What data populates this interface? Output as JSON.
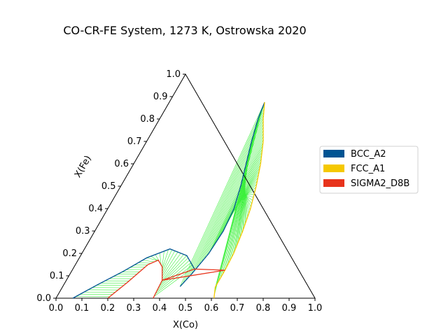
{
  "chart_data": {
    "type": "ternary-phase-diagram",
    "title": "CO-CR-FE System, 1273 K, Ostrowska 2020",
    "xlabel": "X(Co)",
    "ylabel": "X(Fe)",
    "x_ticks": [
      "0.0",
      "0.1",
      "0.2",
      "0.3",
      "0.4",
      "0.5",
      "0.6",
      "0.7",
      "0.8",
      "0.9",
      "1.0"
    ],
    "y_ticks": [
      "0.0",
      "0.1",
      "0.2",
      "0.3",
      "0.4",
      "0.5",
      "0.6",
      "0.7",
      "0.8",
      "0.9",
      "1.0"
    ],
    "xlim": [
      0,
      1
    ],
    "ylim": [
      0,
      1
    ],
    "legend_position": "right",
    "legend": [
      {
        "name": "BCC_A2",
        "color": "#005493"
      },
      {
        "name": "FCC_A1",
        "color": "#f5c800"
      },
      {
        "name": "SIGMA2_D8B",
        "color": "#e8341c"
      }
    ],
    "tie_line_color": "#3cf03c",
    "series": [
      {
        "name": "BCC_A2",
        "color": "#005493",
        "boundaries": [
          {
            "id": "bcc-upper",
            "points": [
              [
                0.453,
                0.052
              ],
              [
                0.47,
                0.11
              ],
              [
                0.49,
                0.2
              ],
              [
                0.496,
                0.3
              ],
              [
                0.487,
                0.4
              ],
              [
                0.463,
                0.5
              ],
              [
                0.434,
                0.6
              ],
              [
                0.405,
                0.7
              ],
              [
                0.38,
                0.8
              ],
              [
                0.368,
                0.875
              ]
            ]
          },
          {
            "id": "bcc-lower",
            "points": [
              [
                0.065,
                0.0
              ],
              [
                0.13,
                0.06
              ],
              [
                0.2,
                0.12
              ],
              [
                0.26,
                0.18
              ],
              [
                0.33,
                0.22
              ],
              [
                0.41,
                0.19
              ],
              [
                0.47,
                0.13
              ]
            ]
          }
        ]
      },
      {
        "name": "FCC_A1",
        "color": "#f5c800",
        "boundaries": [
          {
            "id": "fcc-upper",
            "points": [
              [
                0.368,
                0.875
              ],
              [
                0.4,
                0.8
              ],
              [
                0.45,
                0.7
              ],
              [
                0.49,
                0.6
              ],
              [
                0.523,
                0.5
              ],
              [
                0.551,
                0.4
              ],
              [
                0.571,
                0.3
              ],
              [
                0.586,
                0.2
              ],
              [
                0.59,
                0.125
              ],
              [
                0.59,
                0.05
              ],
              [
                0.61,
                0.0
              ]
            ]
          }
        ]
      },
      {
        "name": "SIGMA2_D8B",
        "color": "#e8341c",
        "boundaries": [
          {
            "id": "sigma-dome",
            "points": [
              [
                0.2,
                0.0
              ],
              [
                0.24,
                0.07
              ],
              [
                0.28,
                0.15
              ],
              [
                0.31,
                0.17
              ],
              [
                0.34,
                0.14
              ],
              [
                0.37,
                0.08
              ],
              [
                0.375,
                0.0
              ]
            ]
          },
          {
            "id": "sigma-triangle-1",
            "points": [
              [
                0.47,
                0.13
              ],
              [
                0.59,
                0.125
              ],
              [
                0.37,
                0.08
              ],
              [
                0.47,
                0.13
              ]
            ]
          }
        ]
      }
    ],
    "tie_line_regions": [
      {
        "id": "upper-bcc-fcc",
        "from": "bcc-upper",
        "to": "fcc-upper",
        "t_start": 0.0,
        "t_end": 0.98,
        "count": 60
      },
      {
        "id": "lower-bcc-sigma",
        "from": "bcc-lower",
        "to": "sigma-dome",
        "t_start": 0.02,
        "t_end": 0.98,
        "count": 34
      }
    ]
  }
}
